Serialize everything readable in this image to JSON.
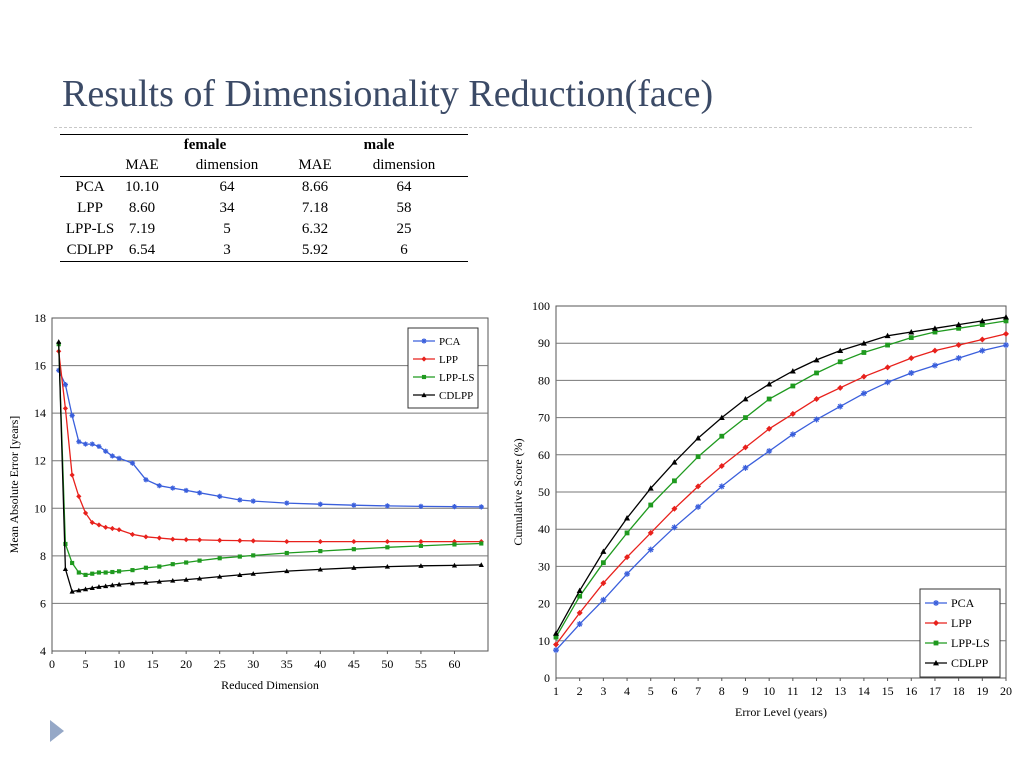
{
  "title": "Results of Dimensionality Reduction(face)",
  "table": {
    "groups": [
      "female",
      "male"
    ],
    "subheaders": [
      "MAE",
      "dimension",
      "MAE",
      "dimension"
    ],
    "rows": [
      {
        "method": "PCA",
        "cells": [
          "10.10",
          "64",
          "8.66",
          "64"
        ]
      },
      {
        "method": "LPP",
        "cells": [
          "8.60",
          "34",
          "7.18",
          "58"
        ]
      },
      {
        "method": "LPP-LS",
        "cells": [
          "7.19",
          "5",
          "6.32",
          "25"
        ]
      },
      {
        "method": "CDLPP",
        "cells": [
          "6.54",
          "3",
          "5.92",
          "6"
        ]
      }
    ]
  },
  "chart_data": [
    {
      "type": "line",
      "xlabel": "Reduced Dimension",
      "ylabel": "Mean Absolute Error [years]",
      "xlim": [
        0,
        65
      ],
      "ylim": [
        4,
        18
      ],
      "xticks": [
        0,
        5,
        10,
        15,
        20,
        25,
        30,
        35,
        40,
        45,
        50,
        55,
        60
      ],
      "yticks": [
        4,
        6,
        8,
        10,
        12,
        14,
        16,
        18
      ],
      "grid": "horizontal",
      "legend": "top-right",
      "series": [
        {
          "name": "PCA",
          "color": "#3a5fdc",
          "marker": "star",
          "x": [
            1,
            2,
            3,
            4,
            5,
            6,
            7,
            8,
            9,
            10,
            12,
            14,
            16,
            18,
            20,
            22,
            25,
            28,
            30,
            35,
            40,
            45,
            50,
            55,
            60,
            64
          ],
          "y": [
            15.8,
            15.2,
            13.9,
            12.8,
            12.7,
            12.7,
            12.6,
            12.4,
            12.2,
            12.1,
            11.9,
            11.2,
            10.95,
            10.85,
            10.75,
            10.65,
            10.5,
            10.35,
            10.3,
            10.22,
            10.17,
            10.13,
            10.1,
            10.08,
            10.07,
            10.06
          ]
        },
        {
          "name": "LPP",
          "color": "#e8211c",
          "marker": "diamond",
          "x": [
            1,
            2,
            3,
            4,
            5,
            6,
            7,
            8,
            9,
            10,
            12,
            14,
            16,
            18,
            20,
            22,
            25,
            28,
            30,
            35,
            40,
            45,
            50,
            55,
            60,
            64
          ],
          "y": [
            16.6,
            14.2,
            11.4,
            10.5,
            9.8,
            9.4,
            9.3,
            9.2,
            9.15,
            9.1,
            8.9,
            8.8,
            8.75,
            8.7,
            8.68,
            8.67,
            8.65,
            8.64,
            8.63,
            8.6,
            8.6,
            8.6,
            8.6,
            8.6,
            8.6,
            8.6
          ]
        },
        {
          "name": "LPP-LS",
          "color": "#1f9a1f",
          "marker": "square",
          "x": [
            1,
            2,
            3,
            4,
            5,
            6,
            7,
            8,
            9,
            10,
            12,
            14,
            16,
            18,
            20,
            22,
            25,
            28,
            30,
            35,
            40,
            45,
            50,
            55,
            60,
            64
          ],
          "y": [
            16.9,
            8.5,
            7.7,
            7.3,
            7.2,
            7.25,
            7.3,
            7.3,
            7.32,
            7.35,
            7.4,
            7.5,
            7.55,
            7.65,
            7.72,
            7.8,
            7.9,
            7.97,
            8.02,
            8.12,
            8.2,
            8.28,
            8.36,
            8.42,
            8.48,
            8.52
          ]
        },
        {
          "name": "CDLPP",
          "color": "#000000",
          "marker": "triangle",
          "x": [
            1,
            2,
            3,
            4,
            5,
            6,
            7,
            8,
            9,
            10,
            12,
            14,
            16,
            18,
            20,
            22,
            25,
            28,
            30,
            35,
            40,
            45,
            50,
            55,
            60,
            64
          ],
          "y": [
            17.0,
            7.45,
            6.5,
            6.55,
            6.6,
            6.65,
            6.7,
            6.73,
            6.77,
            6.8,
            6.85,
            6.88,
            6.92,
            6.96,
            7.0,
            7.05,
            7.13,
            7.2,
            7.25,
            7.36,
            7.43,
            7.5,
            7.55,
            7.58,
            7.6,
            7.62
          ]
        }
      ]
    },
    {
      "type": "line",
      "xlabel": "Error Level (years)",
      "ylabel": "Cumulative Score (%)",
      "xlim": [
        1,
        20
      ],
      "ylim": [
        0,
        100
      ],
      "xticks": [
        1,
        2,
        3,
        4,
        5,
        6,
        7,
        8,
        9,
        10,
        11,
        12,
        13,
        14,
        15,
        16,
        17,
        18,
        19,
        20
      ],
      "yticks": [
        0,
        10,
        20,
        30,
        40,
        50,
        60,
        70,
        80,
        90,
        100
      ],
      "grid": "horizontal",
      "legend": "bottom-right",
      "series": [
        {
          "name": "PCA",
          "color": "#3a5fdc",
          "marker": "star",
          "x": [
            1,
            2,
            3,
            4,
            5,
            6,
            7,
            8,
            9,
            10,
            11,
            12,
            13,
            14,
            15,
            16,
            17,
            18,
            19,
            20
          ],
          "y": [
            7.5,
            14.5,
            21,
            28,
            34.5,
            40.5,
            46,
            51.5,
            56.5,
            61,
            65.5,
            69.5,
            73,
            76.5,
            79.5,
            82,
            84,
            86,
            88,
            89.5
          ]
        },
        {
          "name": "LPP",
          "color": "#e8211c",
          "marker": "diamond",
          "x": [
            1,
            2,
            3,
            4,
            5,
            6,
            7,
            8,
            9,
            10,
            11,
            12,
            13,
            14,
            15,
            16,
            17,
            18,
            19,
            20
          ],
          "y": [
            9,
            17.5,
            25.5,
            32.5,
            39,
            45.5,
            51.5,
            57,
            62,
            67,
            71,
            75,
            78,
            81,
            83.5,
            86,
            88,
            89.5,
            91,
            92.5
          ]
        },
        {
          "name": "LPP-LS",
          "color": "#1f9a1f",
          "marker": "square",
          "x": [
            1,
            2,
            3,
            4,
            5,
            6,
            7,
            8,
            9,
            10,
            11,
            12,
            13,
            14,
            15,
            16,
            17,
            18,
            19,
            20
          ],
          "y": [
            11,
            22,
            31,
            39,
            46.5,
            53,
            59.5,
            65,
            70,
            75,
            78.5,
            82,
            85,
            87.5,
            89.5,
            91.5,
            93,
            94,
            95,
            96
          ]
        },
        {
          "name": "CDLPP",
          "color": "#000000",
          "marker": "triangle",
          "x": [
            1,
            2,
            3,
            4,
            5,
            6,
            7,
            8,
            9,
            10,
            11,
            12,
            13,
            14,
            15,
            16,
            17,
            18,
            19,
            20
          ],
          "y": [
            12,
            23.5,
            34,
            43,
            51,
            58,
            64.5,
            70,
            75,
            79,
            82.5,
            85.5,
            88,
            90,
            92,
            93,
            94,
            95,
            96,
            97
          ]
        }
      ]
    }
  ]
}
